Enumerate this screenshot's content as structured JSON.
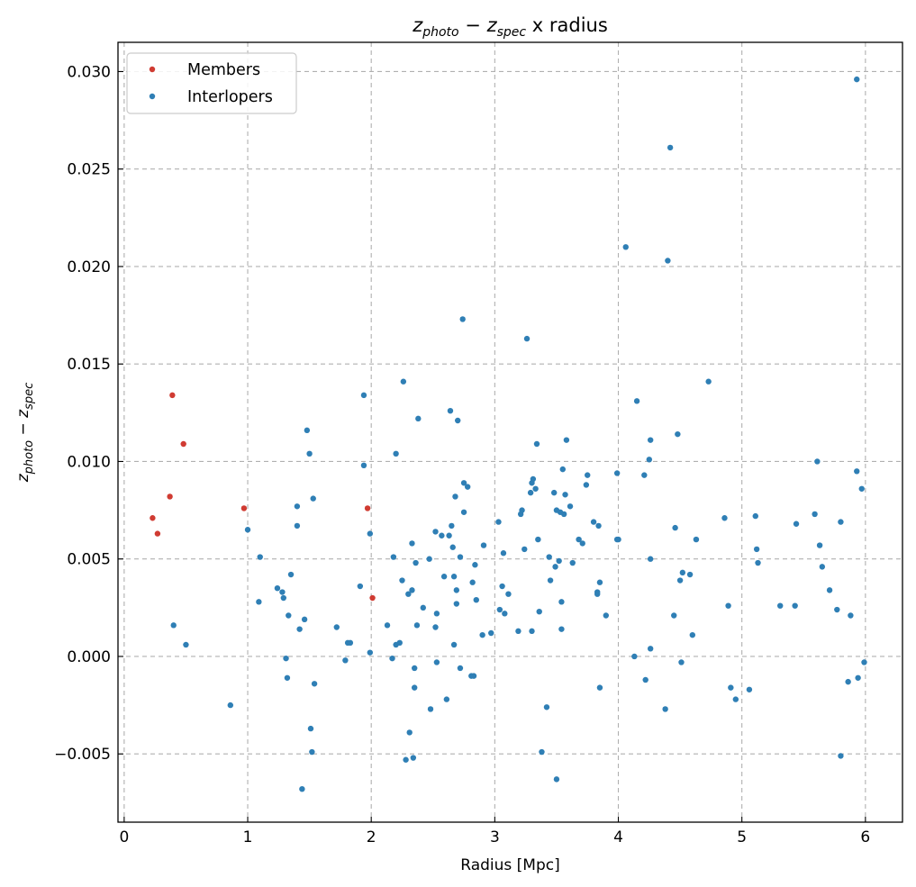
{
  "chart_data": {
    "type": "scatter",
    "title": "$z_{photo} - z_{spec}$ x radius",
    "title_parts": {
      "a": "z",
      "a_sub": "photo",
      "op": " − ",
      "b": "z",
      "b_sub": "spec",
      "rest": " x radius"
    },
    "xlabel": "Radius [Mpc]",
    "ylabel_parts": {
      "a": "z",
      "a_sub": "photo",
      "op": " − ",
      "b": "z",
      "b_sub": "spec"
    },
    "xlim": [
      -0.05,
      6.3
    ],
    "ylim": [
      -0.0085,
      0.0315
    ],
    "x_ticks": [
      0,
      1,
      2,
      3,
      4,
      5,
      6
    ],
    "x_tick_labels": [
      "0",
      "1",
      "2",
      "3",
      "4",
      "5",
      "6"
    ],
    "y_ticks": [
      -0.005,
      0.0,
      0.005,
      0.01,
      0.015,
      0.02,
      0.025,
      0.03
    ],
    "y_tick_labels": [
      "−0.005",
      "0.000",
      "0.005",
      "0.010",
      "0.015",
      "0.020",
      "0.025",
      "0.030"
    ],
    "grid": true,
    "legend_position": "upper-left",
    "series": [
      {
        "name": "Members",
        "color": "#d03b32",
        "points": [
          [
            0.23,
            0.0071
          ],
          [
            0.27,
            0.0063
          ],
          [
            0.37,
            0.0082
          ],
          [
            0.39,
            0.0134
          ],
          [
            0.48,
            0.0109
          ],
          [
            0.97,
            0.0076
          ],
          [
            1.97,
            0.0076
          ],
          [
            2.01,
            0.003
          ]
        ]
      },
      {
        "name": "Interlopers",
        "color": "#2f7fb5",
        "points": [
          [
            0.4,
            0.0016
          ],
          [
            0.5,
            0.0006
          ],
          [
            0.86,
            -0.0025
          ],
          [
            1.0,
            0.0065
          ],
          [
            1.09,
            0.0028
          ],
          [
            1.1,
            0.0051
          ],
          [
            1.24,
            0.0035
          ],
          [
            1.28,
            0.0033
          ],
          [
            1.29,
            0.003
          ],
          [
            1.31,
            -0.0001
          ],
          [
            1.32,
            -0.0011
          ],
          [
            1.33,
            0.0021
          ],
          [
            1.35,
            0.0042
          ],
          [
            1.4,
            0.0067
          ],
          [
            1.4,
            0.0077
          ],
          [
            1.42,
            0.0014
          ],
          [
            1.44,
            -0.0068
          ],
          [
            1.46,
            0.0019
          ],
          [
            1.48,
            0.0116
          ],
          [
            1.5,
            0.0104
          ],
          [
            1.51,
            -0.0037
          ],
          [
            1.52,
            -0.0049
          ],
          [
            1.53,
            0.0081
          ],
          [
            1.54,
            -0.0014
          ],
          [
            1.72,
            0.0015
          ],
          [
            1.79,
            -0.0002
          ],
          [
            1.81,
            0.0007
          ],
          [
            1.83,
            0.0007
          ],
          [
            1.91,
            0.0036
          ],
          [
            1.94,
            0.0134
          ],
          [
            1.94,
            0.0098
          ],
          [
            1.99,
            0.0063
          ],
          [
            1.99,
            0.0002
          ],
          [
            2.13,
            0.0016
          ],
          [
            2.17,
            -0.0001
          ],
          [
            2.18,
            0.0051
          ],
          [
            2.2,
            0.0006
          ],
          [
            2.2,
            0.0104
          ],
          [
            2.23,
            0.0007
          ],
          [
            2.25,
            0.0039
          ],
          [
            2.26,
            0.0141
          ],
          [
            2.28,
            -0.0053
          ],
          [
            2.3,
            0.0032
          ],
          [
            2.31,
            -0.0039
          ],
          [
            2.33,
            0.0034
          ],
          [
            2.33,
            0.0058
          ],
          [
            2.34,
            -0.0052
          ],
          [
            2.35,
            -0.0006
          ],
          [
            2.35,
            -0.0016
          ],
          [
            2.36,
            0.0048
          ],
          [
            2.37,
            0.0016
          ],
          [
            2.38,
            0.0122
          ],
          [
            2.42,
            0.0025
          ],
          [
            2.47,
            0.005
          ],
          [
            2.48,
            -0.0027
          ],
          [
            2.52,
            0.0064
          ],
          [
            2.52,
            0.0015
          ],
          [
            2.53,
            0.0022
          ],
          [
            2.53,
            -0.0003
          ],
          [
            2.57,
            0.0062
          ],
          [
            2.59,
            0.0041
          ],
          [
            2.61,
            -0.0022
          ],
          [
            2.63,
            0.0062
          ],
          [
            2.64,
            0.0126
          ],
          [
            2.65,
            0.0067
          ],
          [
            2.66,
            0.0056
          ],
          [
            2.67,
            0.0006
          ],
          [
            2.67,
            0.0041
          ],
          [
            2.68,
            0.0082
          ],
          [
            2.69,
            0.0034
          ],
          [
            2.69,
            0.0027
          ],
          [
            2.7,
            0.0121
          ],
          [
            2.72,
            -0.0006
          ],
          [
            2.72,
            0.0051
          ],
          [
            2.74,
            0.0173
          ],
          [
            2.75,
            0.0074
          ],
          [
            2.75,
            0.0089
          ],
          [
            2.78,
            0.0087
          ],
          [
            2.81,
            -0.001
          ],
          [
            2.82,
            0.0038
          ],
          [
            2.83,
            -0.001
          ],
          [
            2.84,
            0.0047
          ],
          [
            2.85,
            0.0029
          ],
          [
            2.9,
            0.0011
          ],
          [
            2.91,
            0.0057
          ],
          [
            2.97,
            0.0012
          ],
          [
            3.03,
            0.0069
          ],
          [
            3.04,
            0.0024
          ],
          [
            3.06,
            0.0036
          ],
          [
            3.07,
            0.0053
          ],
          [
            3.08,
            0.0022
          ],
          [
            3.11,
            0.0032
          ],
          [
            3.19,
            0.0013
          ],
          [
            3.21,
            0.0073
          ],
          [
            3.22,
            0.0075
          ],
          [
            3.24,
            0.0055
          ],
          [
            3.26,
            0.0163
          ],
          [
            3.29,
            0.0084
          ],
          [
            3.3,
            0.0013
          ],
          [
            3.3,
            0.0089
          ],
          [
            3.31,
            0.0091
          ],
          [
            3.33,
            0.0086
          ],
          [
            3.34,
            0.0109
          ],
          [
            3.35,
            0.006
          ],
          [
            3.36,
            0.0023
          ],
          [
            3.38,
            -0.0049
          ],
          [
            3.42,
            -0.0026
          ],
          [
            3.44,
            0.0051
          ],
          [
            3.45,
            0.0039
          ],
          [
            3.48,
            0.0084
          ],
          [
            3.49,
            0.0046
          ],
          [
            3.5,
            0.0075
          ],
          [
            3.5,
            -0.0063
          ],
          [
            3.52,
            0.0049
          ],
          [
            3.53,
            0.0074
          ],
          [
            3.54,
            0.0028
          ],
          [
            3.54,
            0.0014
          ],
          [
            3.55,
            0.0096
          ],
          [
            3.56,
            0.0073
          ],
          [
            3.57,
            0.0083
          ],
          [
            3.58,
            0.0111
          ],
          [
            3.61,
            0.0077
          ],
          [
            3.63,
            0.0048
          ],
          [
            3.68,
            0.006
          ],
          [
            3.71,
            0.0058
          ],
          [
            3.74,
            0.0088
          ],
          [
            3.75,
            0.0093
          ],
          [
            3.8,
            0.0069
          ],
          [
            3.83,
            0.0033
          ],
          [
            3.83,
            0.0032
          ],
          [
            3.84,
            0.0067
          ],
          [
            3.85,
            0.0038
          ],
          [
            3.85,
            -0.0016
          ],
          [
            3.9,
            0.0021
          ],
          [
            3.99,
            0.0094
          ],
          [
            3.99,
            0.006
          ],
          [
            4.0,
            0.006
          ],
          [
            4.06,
            0.021
          ],
          [
            4.13,
            0.0
          ],
          [
            4.15,
            0.0131
          ],
          [
            4.21,
            0.0093
          ],
          [
            4.22,
            -0.0012
          ],
          [
            4.25,
            0.0101
          ],
          [
            4.26,
            0.0111
          ],
          [
            4.26,
            0.005
          ],
          [
            4.26,
            0.0004
          ],
          [
            4.38,
            -0.0027
          ],
          [
            4.4,
            0.0203
          ],
          [
            4.42,
            0.0261
          ],
          [
            4.45,
            0.0021
          ],
          [
            4.46,
            0.0066
          ],
          [
            4.48,
            0.0114
          ],
          [
            4.5,
            0.0039
          ],
          [
            4.51,
            -0.0003
          ],
          [
            4.52,
            0.0043
          ],
          [
            4.58,
            0.0042
          ],
          [
            4.6,
            0.0011
          ],
          [
            4.63,
            0.006
          ],
          [
            4.73,
            0.0141
          ],
          [
            4.86,
            0.0071
          ],
          [
            4.89,
            0.0026
          ],
          [
            4.91,
            -0.0016
          ],
          [
            4.95,
            -0.0022
          ],
          [
            5.06,
            -0.0017
          ],
          [
            5.11,
            0.0072
          ],
          [
            5.12,
            0.0055
          ],
          [
            5.13,
            0.0048
          ],
          [
            5.31,
            0.0026
          ],
          [
            5.43,
            0.0026
          ],
          [
            5.44,
            0.0068
          ],
          [
            5.59,
            0.0073
          ],
          [
            5.61,
            0.01
          ],
          [
            5.63,
            0.0057
          ],
          [
            5.65,
            0.0046
          ],
          [
            5.71,
            0.0034
          ],
          [
            5.77,
            0.0024
          ],
          [
            5.8,
            0.0069
          ],
          [
            5.8,
            -0.0051
          ],
          [
            5.86,
            -0.0013
          ],
          [
            5.88,
            0.0021
          ],
          [
            5.93,
            0.0296
          ],
          [
            5.93,
            0.0095
          ],
          [
            5.94,
            -0.0011
          ],
          [
            5.97,
            0.0086
          ],
          [
            5.99,
            -0.0003
          ]
        ]
      }
    ]
  }
}
